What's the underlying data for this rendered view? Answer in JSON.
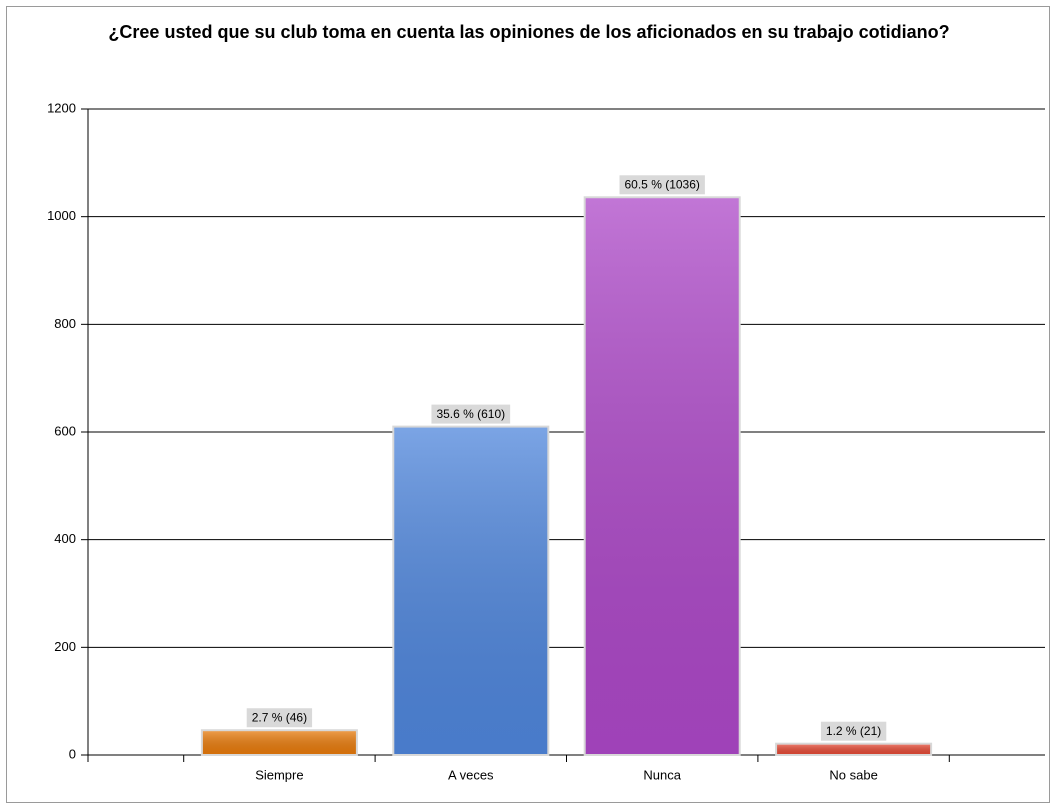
{
  "chart_data": {
    "type": "bar",
    "title": "¿Cree usted que su club toma en cuenta las opiniones de los aficionados en su trabajo cotidiano?",
    "categories": [
      "Siempre",
      "A veces",
      "Nunca",
      "No sabe"
    ],
    "values": [
      46,
      610,
      1036,
      21
    ],
    "value_labels": [
      "2.7 % (46)",
      "35.6 % (610)",
      "60.5 % (1036)",
      "1.2 % (21)"
    ],
    "colors": [
      "#e67a0c",
      "#4f86dc",
      "#ad48c8",
      "#e24a36"
    ],
    "ylim": [
      0,
      1200
    ],
    "yticks": [
      0,
      200,
      400,
      600,
      800,
      1000,
      1200
    ],
    "grid": true
  }
}
